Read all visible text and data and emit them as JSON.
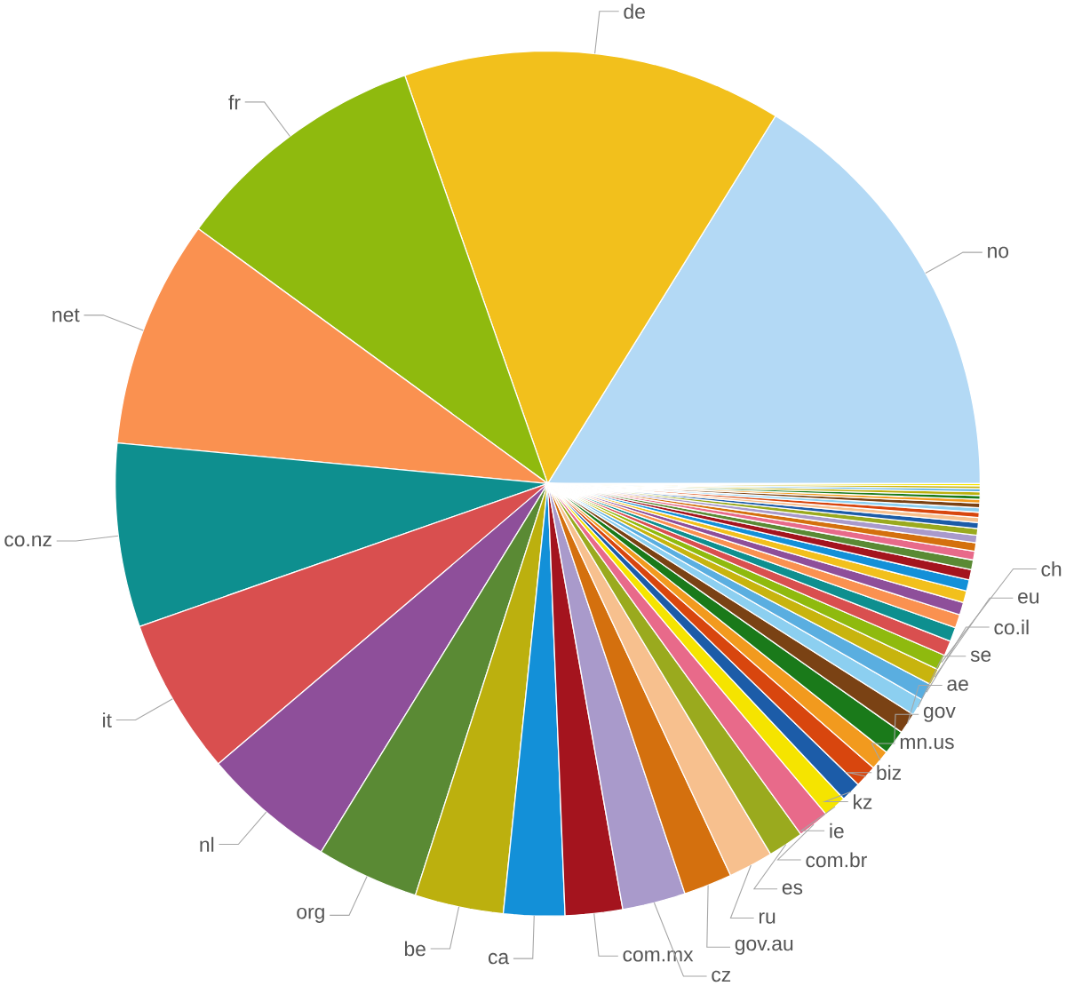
{
  "chart_data": {
    "type": "pie",
    "categories": [
      "no",
      "de",
      "fr",
      "net",
      "co.nz",
      "it",
      "nl",
      "org",
      "be",
      "ca",
      "com.mx",
      "cz",
      "gov.au",
      "ru",
      "es",
      "com.br",
      "ie",
      "kz",
      "biz",
      "mn.us",
      "gov",
      "ae",
      "se",
      "co.il",
      "eu",
      "ch",
      null,
      null,
      null,
      null,
      null,
      null,
      null,
      null,
      null,
      null,
      null,
      null,
      null,
      null,
      null,
      null,
      null,
      null,
      null,
      null,
      null,
      null,
      null
    ],
    "values": [
      16.17,
      14.19,
      9.61,
      8.53,
      6.86,
      5.86,
      5.0,
      3.83,
      3.31,
      2.28,
      2.14,
      2.36,
      1.81,
      1.67,
      1.33,
      1.19,
      0.86,
      0.75,
      0.83,
      0.75,
      0.92,
      0.78,
      0.64,
      0.64,
      0.61,
      0.58,
      0.56,
      0.53,
      0.5,
      0.47,
      0.44,
      0.42,
      0.39,
      0.36,
      0.33,
      0.31,
      0.28,
      0.25,
      0.22,
      0.19,
      0.19,
      0.17,
      0.17,
      0.14,
      0.14,
      0.14,
      0.11,
      0.11,
      0.08
    ],
    "colors": [
      "#b3d9f5",
      "#f2c01c",
      "#8fba0e",
      "#fa9150",
      "#0e8f8f",
      "#d94f4f",
      "#8e4f9a",
      "#5a8a34",
      "#bcb00e",
      "#1390d8",
      "#a4141e",
      "#a99acb",
      "#d4700e",
      "#f7c08e",
      "#9aaa1e",
      "#e86a8a",
      "#f5e400",
      "#1c5ca8",
      "#d8460e",
      "#f29a1e",
      "#1a7a1a",
      "#7a4214",
      "#8ccff0",
      "#5aaee0",
      "#c8b40e",
      "#8fba0e",
      "#d94f4f",
      "#0e8f8f",
      "#fa9150",
      "#8e4f9a",
      "#f2c01c",
      "#1390d8",
      "#a4141e",
      "#5a8a34",
      "#e86a8a",
      "#d4700e",
      "#a99acb",
      "#9aaa1e",
      "#1c5ca8",
      "#f7c08e",
      "#d8460e",
      "#8ccff0",
      "#7a4214",
      "#f29a1e",
      "#1a7a1a",
      "#bcb00e",
      "#5aaee0",
      "#c8b40e",
      "#f5e400"
    ]
  }
}
